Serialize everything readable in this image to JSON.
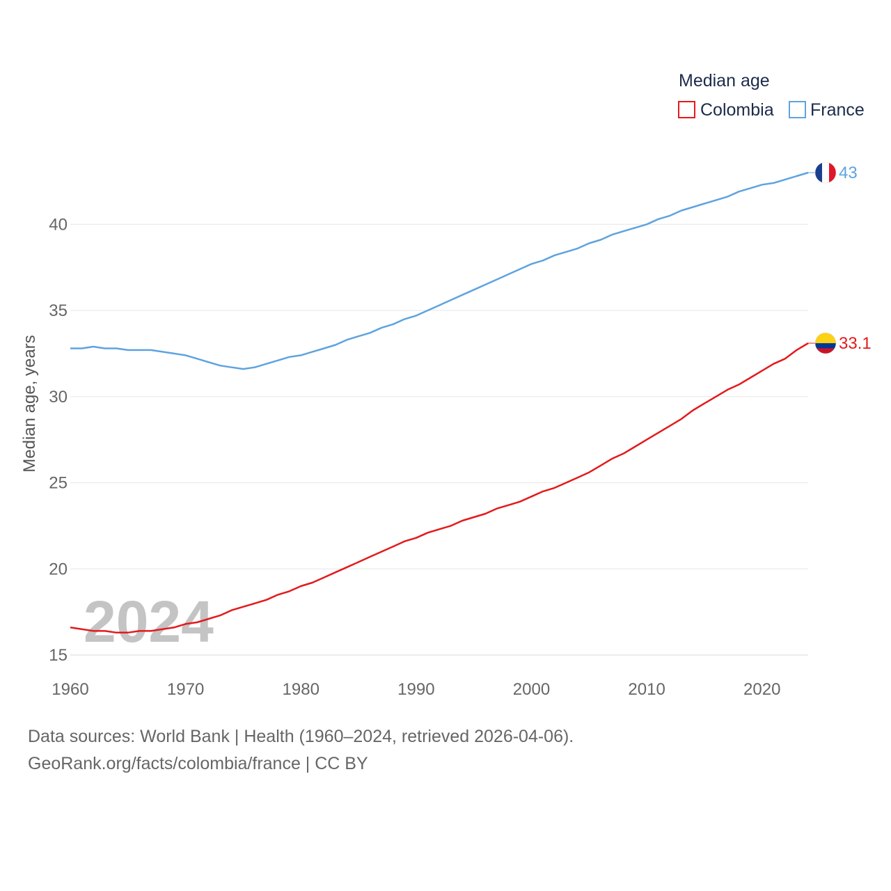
{
  "chart_data": {
    "type": "line",
    "ylabel": "Median age, years",
    "xlabel": "",
    "xlim": [
      1960,
      2024
    ],
    "ylim": [
      15,
      44
    ],
    "yticks": [
      15,
      20,
      25,
      30,
      35,
      40
    ],
    "xticks": [
      1960,
      1970,
      1980,
      1990,
      2000,
      2010,
      2020
    ],
    "grid": true,
    "legend_title": "Median age",
    "legend_position": "top-right",
    "year_label": "2024",
    "x": [
      1960,
      1961,
      1962,
      1963,
      1964,
      1965,
      1966,
      1967,
      1968,
      1969,
      1970,
      1971,
      1972,
      1973,
      1974,
      1975,
      1976,
      1977,
      1978,
      1979,
      1980,
      1981,
      1982,
      1983,
      1984,
      1985,
      1986,
      1987,
      1988,
      1989,
      1990,
      1991,
      1992,
      1993,
      1994,
      1995,
      1996,
      1997,
      1998,
      1999,
      2000,
      2001,
      2002,
      2003,
      2004,
      2005,
      2006,
      2007,
      2008,
      2009,
      2010,
      2011,
      2012,
      2013,
      2014,
      2015,
      2016,
      2017,
      2018,
      2019,
      2020,
      2021,
      2022,
      2023,
      2024
    ],
    "series": [
      {
        "name": "Colombia",
        "color": "#e31a1c",
        "end_label": "33.1",
        "flag": "colombia-flag",
        "values": [
          16.6,
          16.5,
          16.4,
          16.4,
          16.3,
          16.3,
          16.4,
          16.4,
          16.5,
          16.6,
          16.8,
          16.9,
          17.1,
          17.3,
          17.6,
          17.8,
          18.0,
          18.2,
          18.5,
          18.7,
          19.0,
          19.2,
          19.5,
          19.8,
          20.1,
          20.4,
          20.7,
          21.0,
          21.3,
          21.6,
          21.8,
          22.1,
          22.3,
          22.5,
          22.8,
          23.0,
          23.2,
          23.5,
          23.7,
          23.9,
          24.2,
          24.5,
          24.7,
          25.0,
          25.3,
          25.6,
          26.0,
          26.4,
          26.7,
          27.1,
          27.5,
          27.9,
          28.3,
          28.7,
          29.2,
          29.6,
          30.0,
          30.4,
          30.7,
          31.1,
          31.5,
          31.9,
          32.2,
          32.7,
          33.1
        ]
      },
      {
        "name": "France",
        "color": "#5ea3e0",
        "end_label": "43",
        "flag": "france-flag",
        "values": [
          32.8,
          32.8,
          32.9,
          32.8,
          32.8,
          32.7,
          32.7,
          32.7,
          32.6,
          32.5,
          32.4,
          32.2,
          32.0,
          31.8,
          31.7,
          31.6,
          31.7,
          31.9,
          32.1,
          32.3,
          32.4,
          32.6,
          32.8,
          33.0,
          33.3,
          33.5,
          33.7,
          34.0,
          34.2,
          34.5,
          34.7,
          35.0,
          35.3,
          35.6,
          35.9,
          36.2,
          36.5,
          36.8,
          37.1,
          37.4,
          37.7,
          37.9,
          38.2,
          38.4,
          38.6,
          38.9,
          39.1,
          39.4,
          39.6,
          39.8,
          40.0,
          40.3,
          40.5,
          40.8,
          41.0,
          41.2,
          41.4,
          41.6,
          41.9,
          42.1,
          42.3,
          42.4,
          42.6,
          42.8,
          43.0
        ]
      }
    ]
  },
  "footer": {
    "sources": "Data sources: World Bank | Health (1960–2024, retrieved 2026-04-06).",
    "credit": "GeoRank.org/facts/colombia/france | CC BY"
  }
}
